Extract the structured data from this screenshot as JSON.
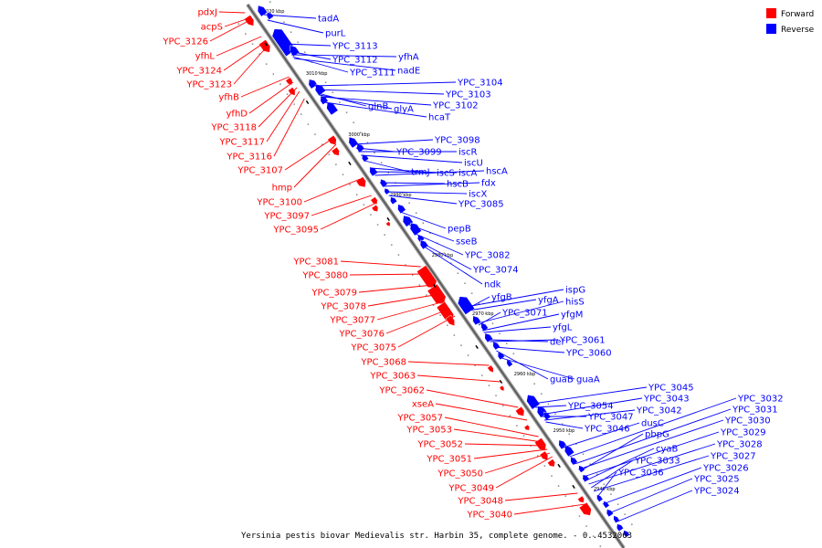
{
  "caption": "Yersinia pestis biovar Medievalis str. Harbin 35, complete genome. - 0..4532063",
  "legend": [
    {
      "label": "Forward",
      "color": "#ff0000"
    },
    {
      "label": "Reverse",
      "color": "#0000ff"
    }
  ],
  "scale_ticks": [
    "3020 kbp",
    "3010 kbp",
    "3000 kbp",
    "2990 kbp",
    "2980 kbp",
    "2970 kbp",
    "2960 kbp",
    "2950 kbp",
    "2940 kbp"
  ],
  "forward_genes": [
    "pdxJ",
    "acpS",
    "YPC_3126",
    "yfhL",
    "YPC_3124",
    "YPC_3123",
    "yfhB",
    "yfhD",
    "YPC_3118",
    "YPC_3117",
    "YPC_3116",
    "YPC_3107",
    "hmp",
    "YPC_3100",
    "YPC_3097",
    "YPC_3095",
    "YPC_3081",
    "YPC_3080",
    "YPC_3079",
    "YPC_3078",
    "YPC_3077",
    "YPC_3076",
    "YPC_3075",
    "YPC_3068",
    "YPC_3063",
    "YPC_3062",
    "xseA",
    "YPC_3057",
    "YPC_3053",
    "YPC_3052",
    "YPC_3051",
    "YPC_3050",
    "YPC_3049",
    "YPC_3048",
    "YPC_3040"
  ],
  "reverse_genes": [
    "tadA",
    "purL",
    "YPC_3113",
    "YPC_3112",
    "yfhA",
    "YPC_3111",
    "nadE",
    "YPC_3104",
    "YPC_3103",
    "glnB",
    "glyA",
    "YPC_3102",
    "hcaT",
    "YPC_3098",
    "YPC_3099",
    "iscR",
    "iscU",
    "trmJ",
    "iscS",
    "iscA",
    "hscA",
    "hscB",
    "fdx",
    "iscX",
    "YPC_3085",
    "pepB",
    "sseB",
    "YPC_3082",
    "YPC_3074",
    "ndk",
    "ispG",
    "yfgB",
    "yfgA",
    "hisS",
    "YPC_3071",
    "yfgM",
    "yfgL",
    "der",
    "YPC_3061",
    "YPC_3060",
    "guaB",
    "guaA",
    "YPC_3045",
    "YPC_3043",
    "YPC_3054",
    "YPC_3047",
    "YPC_3042",
    "YPC_3046",
    "dusC",
    "YPC_3032",
    "YPC_3031",
    "YPC_3030",
    "pbpG",
    "YPC_3029",
    "cyaB",
    "YPC_3028",
    "YPC_3033",
    "YPC_3027",
    "YPC_3036",
    "YPC_3026",
    "YPC_3025",
    "YPC_3024"
  ]
}
